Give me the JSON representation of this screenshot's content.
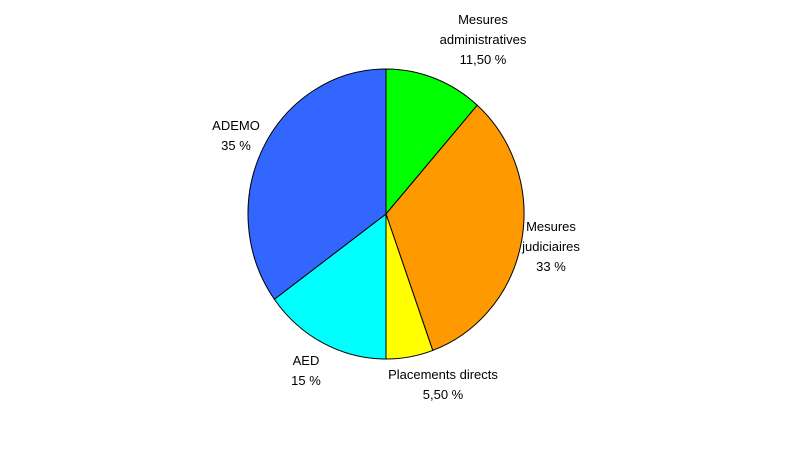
{
  "chart_data": {
    "type": "pie",
    "categories": [
      "Mesures administratives",
      "Mesures judiciaires",
      "Placements directs",
      "AED",
      "ADEMO"
    ],
    "values": [
      11.5,
      33,
      5.5,
      15,
      35
    ],
    "value_labels": [
      "11,50 %",
      "33 %",
      "5,50 %",
      "15 %",
      "35 %"
    ],
    "colors": [
      "#00ff00",
      "#ff9900",
      "#ffff00",
      "#00ffff",
      "#3366ff"
    ]
  }
}
